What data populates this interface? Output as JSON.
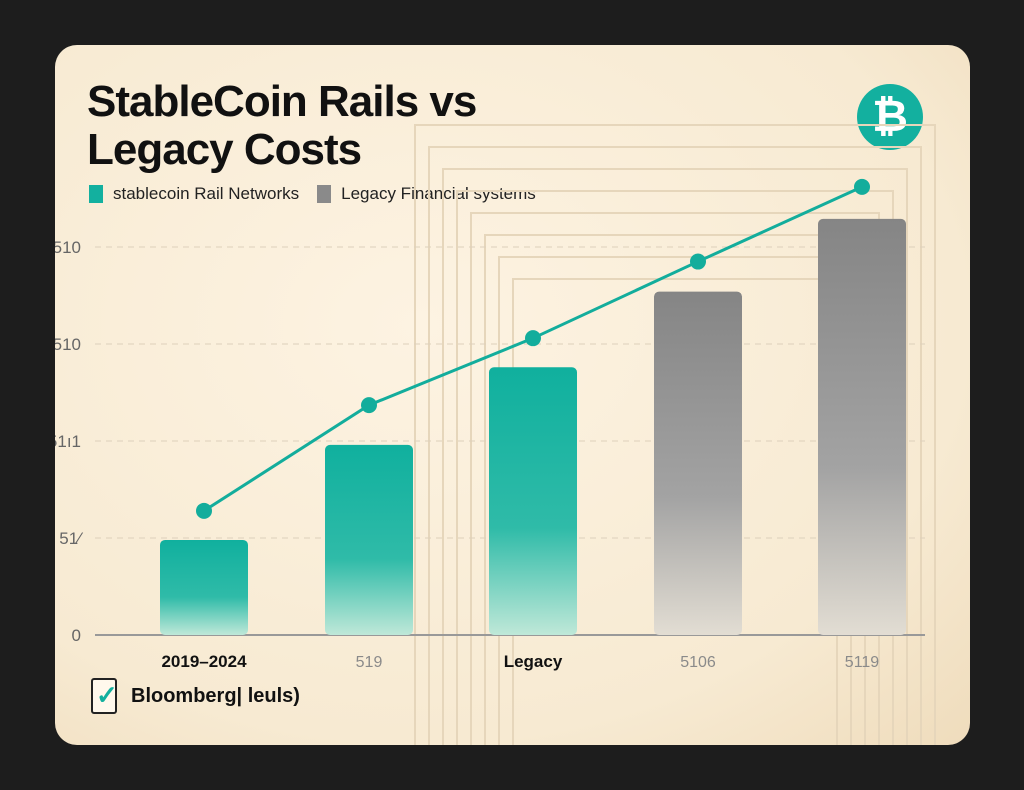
{
  "title": "StableCoin Rails vs Legacy Costs",
  "title_lines": [
    "StableCoin Rails vs",
    "Legacy Costs"
  ],
  "icon": "bitcoin-icon",
  "source": "Bloomberg| leuls)",
  "colors": {
    "stablecoin": "#13b09f",
    "legacy": "#8a8a8a",
    "line": "#13ad9c",
    "background": "#f9eedb"
  },
  "chart_data": {
    "type": "bar",
    "title": "StableCoin Rails vs Legacy Costs",
    "categories": [
      "2019–2024",
      "519",
      "Legacy",
      "5106",
      "5119"
    ],
    "category_bold": [
      true,
      false,
      true,
      false,
      false
    ],
    "yticks": [
      {
        "value": 0,
        "label": "0"
      },
      {
        "value": 1,
        "label": "51⁄"
      },
      {
        "value": 2,
        "label": "51ı1"
      },
      {
        "value": 3,
        "label": "510"
      },
      {
        "value": 4,
        "label": "510"
      }
    ],
    "ylim": [
      0,
      4.8
    ],
    "grid": true,
    "legend_placement": "top-left",
    "series": [
      {
        "name": "stablecoin Rail Networks",
        "kind": "bar",
        "color": "#13b09f",
        "values": [
          0.98,
          1.96,
          2.76,
          null,
          null
        ]
      },
      {
        "name": "Legacy Financial systems",
        "kind": "bar",
        "color": "#8a8a8a",
        "values": [
          null,
          null,
          null,
          3.54,
          4.29
        ]
      },
      {
        "kind": "line",
        "color": "#13ad9c",
        "values": [
          1.28,
          2.37,
          3.06,
          3.85,
          4.62
        ]
      }
    ]
  }
}
